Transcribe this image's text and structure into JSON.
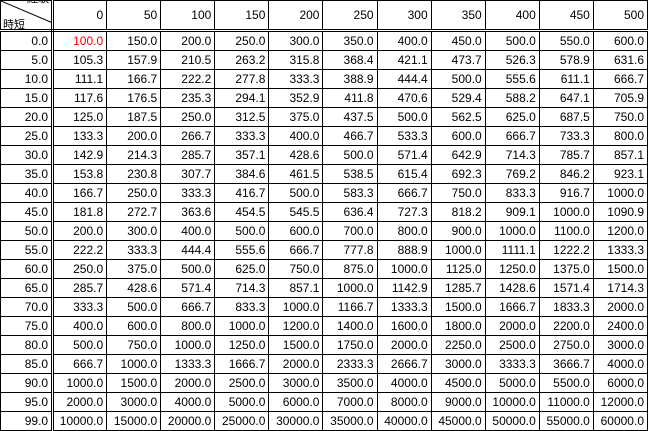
{
  "corner": {
    "column_axis_label": "経験",
    "row_axis_label": "時短"
  },
  "columns": [
    "0",
    "50",
    "100",
    "150",
    "200",
    "250",
    "300",
    "350",
    "400",
    "450",
    "500"
  ],
  "highlight_color": "#ff0000",
  "rows": [
    {
      "label": "0.0",
      "values": [
        "100.0",
        "150.0",
        "200.0",
        "250.0",
        "300.0",
        "350.0",
        "400.0",
        "450.0",
        "500.0",
        "550.0",
        "600.0"
      ]
    },
    {
      "label": "5.0",
      "values": [
        "105.3",
        "157.9",
        "210.5",
        "263.2",
        "315.8",
        "368.4",
        "421.1",
        "473.7",
        "526.3",
        "578.9",
        "631.6"
      ]
    },
    {
      "label": "10.0",
      "values": [
        "111.1",
        "166.7",
        "222.2",
        "277.8",
        "333.3",
        "388.9",
        "444.4",
        "500.0",
        "555.6",
        "611.1",
        "666.7"
      ]
    },
    {
      "label": "15.0",
      "values": [
        "117.6",
        "176.5",
        "235.3",
        "294.1",
        "352.9",
        "411.8",
        "470.6",
        "529.4",
        "588.2",
        "647.1",
        "705.9"
      ]
    },
    {
      "label": "20.0",
      "values": [
        "125.0",
        "187.5",
        "250.0",
        "312.5",
        "375.0",
        "437.5",
        "500.0",
        "562.5",
        "625.0",
        "687.5",
        "750.0"
      ]
    },
    {
      "label": "25.0",
      "values": [
        "133.3",
        "200.0",
        "266.7",
        "333.3",
        "400.0",
        "466.7",
        "533.3",
        "600.0",
        "666.7",
        "733.3",
        "800.0"
      ]
    },
    {
      "label": "30.0",
      "values": [
        "142.9",
        "214.3",
        "285.7",
        "357.1",
        "428.6",
        "500.0",
        "571.4",
        "642.9",
        "714.3",
        "785.7",
        "857.1"
      ]
    },
    {
      "label": "35.0",
      "values": [
        "153.8",
        "230.8",
        "307.7",
        "384.6",
        "461.5",
        "538.5",
        "615.4",
        "692.3",
        "769.2",
        "846.2",
        "923.1"
      ]
    },
    {
      "label": "40.0",
      "values": [
        "166.7",
        "250.0",
        "333.3",
        "416.7",
        "500.0",
        "583.3",
        "666.7",
        "750.0",
        "833.3",
        "916.7",
        "1000.0"
      ]
    },
    {
      "label": "45.0",
      "values": [
        "181.8",
        "272.7",
        "363.6",
        "454.5",
        "545.5",
        "636.4",
        "727.3",
        "818.2",
        "909.1",
        "1000.0",
        "1090.9"
      ]
    },
    {
      "label": "50.0",
      "values": [
        "200.0",
        "300.0",
        "400.0",
        "500.0",
        "600.0",
        "700.0",
        "800.0",
        "900.0",
        "1000.0",
        "1100.0",
        "1200.0"
      ]
    },
    {
      "label": "55.0",
      "values": [
        "222.2",
        "333.3",
        "444.4",
        "555.6",
        "666.7",
        "777.8",
        "888.9",
        "1000.0",
        "1111.1",
        "1222.2",
        "1333.3"
      ]
    },
    {
      "label": "60.0",
      "values": [
        "250.0",
        "375.0",
        "500.0",
        "625.0",
        "750.0",
        "875.0",
        "1000.0",
        "1125.0",
        "1250.0",
        "1375.0",
        "1500.0"
      ]
    },
    {
      "label": "65.0",
      "values": [
        "285.7",
        "428.6",
        "571.4",
        "714.3",
        "857.1",
        "1000.0",
        "1142.9",
        "1285.7",
        "1428.6",
        "1571.4",
        "1714.3"
      ]
    },
    {
      "label": "70.0",
      "values": [
        "333.3",
        "500.0",
        "666.7",
        "833.3",
        "1000.0",
        "1166.7",
        "1333.3",
        "1500.0",
        "1666.7",
        "1833.3",
        "2000.0"
      ]
    },
    {
      "label": "75.0",
      "values": [
        "400.0",
        "600.0",
        "800.0",
        "1000.0",
        "1200.0",
        "1400.0",
        "1600.0",
        "1800.0",
        "2000.0",
        "2200.0",
        "2400.0"
      ]
    },
    {
      "label": "80.0",
      "values": [
        "500.0",
        "750.0",
        "1000.0",
        "1250.0",
        "1500.0",
        "1750.0",
        "2000.0",
        "2250.0",
        "2500.0",
        "2750.0",
        "3000.0"
      ]
    },
    {
      "label": "85.0",
      "values": [
        "666.7",
        "1000.0",
        "1333.3",
        "1666.7",
        "2000.0",
        "2333.3",
        "2666.7",
        "3000.0",
        "3333.3",
        "3666.7",
        "4000.0"
      ]
    },
    {
      "label": "90.0",
      "values": [
        "1000.0",
        "1500.0",
        "2000.0",
        "2500.0",
        "3000.0",
        "3500.0",
        "4000.0",
        "4500.0",
        "5000.0",
        "5500.0",
        "6000.0"
      ]
    },
    {
      "label": "95.0",
      "values": [
        "2000.0",
        "3000.0",
        "4000.0",
        "5000.0",
        "6000.0",
        "7000.0",
        "8000.0",
        "9000.0",
        "10000.0",
        "11000.0",
        "12000.0"
      ]
    },
    {
      "label": "99.0",
      "values": [
        "10000.0",
        "15000.0",
        "20000.0",
        "25000.0",
        "30000.0",
        "35000.0",
        "40000.0",
        "45000.0",
        "50000.0",
        "55000.0",
        "60000.0"
      ]
    }
  ]
}
